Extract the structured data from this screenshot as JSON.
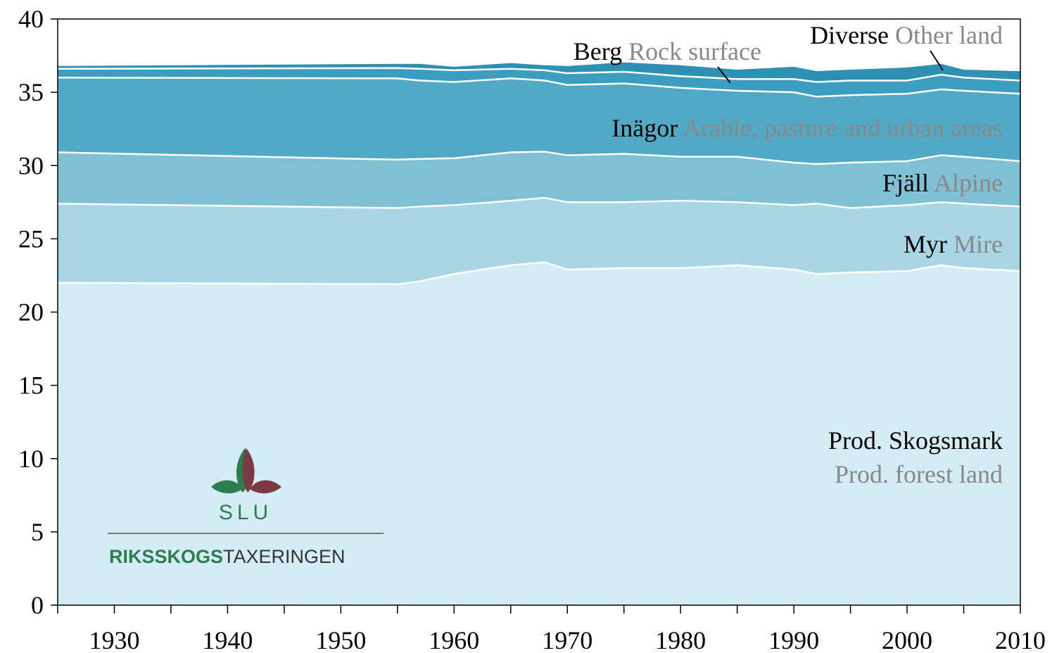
{
  "chart_data": {
    "type": "stacked_area",
    "x": [
      1925,
      1955,
      1957,
      1960,
      1965,
      1968,
      1970,
      1975,
      1980,
      1985,
      1990,
      1992,
      1995,
      2000,
      2003,
      2005,
      2010
    ],
    "series": [
      {
        "name": "Prod. Skogsmark",
        "name_en": "Prod. forest land",
        "color": "#d4ecf4",
        "values": [
          22.0,
          21.9,
          22.1,
          22.6,
          23.2,
          23.4,
          22.9,
          23.0,
          23.0,
          23.2,
          22.9,
          22.6,
          22.7,
          22.8,
          23.2,
          23.0,
          22.8
        ]
      },
      {
        "name": "Myr",
        "name_en": "Mire",
        "color": "#a9d6e5",
        "values": [
          5.4,
          5.2,
          5.1,
          4.7,
          4.4,
          4.4,
          4.6,
          4.5,
          4.6,
          4.3,
          4.4,
          4.8,
          4.4,
          4.5,
          4.3,
          4.4,
          4.4
        ]
      },
      {
        "name": "Fjäll",
        "name_en": "Alpine",
        "color": "#80c0d4",
        "values": [
          3.5,
          3.3,
          3.25,
          3.2,
          3.3,
          3.15,
          3.2,
          3.3,
          3.0,
          3.1,
          2.9,
          2.7,
          3.1,
          3.0,
          3.2,
          3.2,
          3.1
        ]
      },
      {
        "name": "Inägor",
        "name_en": "Arable, pasture and urban areas",
        "color": "#52a9c6",
        "values": [
          5.1,
          5.55,
          5.35,
          5.2,
          5.05,
          4.85,
          4.8,
          4.8,
          4.7,
          4.5,
          4.8,
          4.6,
          4.6,
          4.6,
          4.5,
          4.5,
          4.6
        ]
      },
      {
        "name": "Berg",
        "name_en": "Rock surface",
        "color": "#3b9dbf",
        "values": [
          0.6,
          0.7,
          0.8,
          0.8,
          0.65,
          0.7,
          0.8,
          0.8,
          0.8,
          0.8,
          0.9,
          1.0,
          1.0,
          0.9,
          1.0,
          0.9,
          0.9
        ]
      },
      {
        "name": "Diverse",
        "name_en": "Other land",
        "color": "#2e90b3",
        "values": [
          0.25,
          0.35,
          0.4,
          0.3,
          0.45,
          0.4,
          0.55,
          0.7,
          0.8,
          0.7,
          0.9,
          0.8,
          0.8,
          0.95,
          0.8,
          0.6,
          0.7
        ]
      }
    ],
    "xlim": [
      1925,
      2010
    ],
    "xticks": [
      1930,
      1940,
      1950,
      1960,
      1970,
      1980,
      1990,
      2000,
      2010
    ],
    "xticks_minor": [
      1925,
      1935,
      1945,
      1955,
      1965,
      1975,
      1985,
      1995,
      2005
    ],
    "ylim": [
      0,
      40
    ],
    "yticks": [
      0,
      5,
      10,
      15,
      20,
      25,
      30,
      35,
      40
    ]
  },
  "logo": {
    "name": "SLU",
    "bold": "RIKSSKOGS",
    "rest": "TAXERINGEN"
  }
}
